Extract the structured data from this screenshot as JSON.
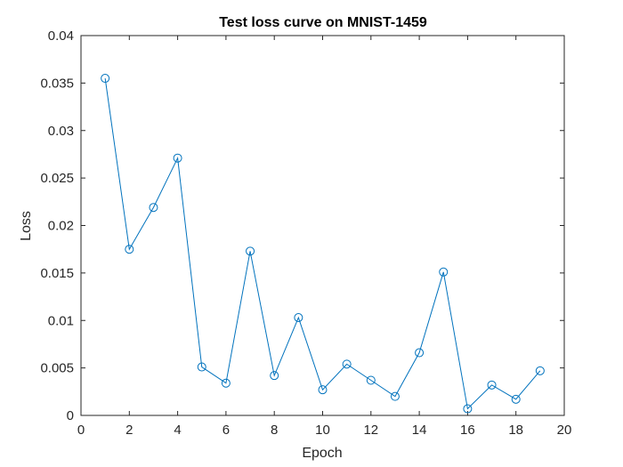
{
  "chart_data": {
    "type": "line",
    "title": "Test loss curve on MNIST-1459",
    "xlabel": "Epoch",
    "ylabel": "Loss",
    "xlim": [
      0,
      20
    ],
    "ylim": [
      0,
      0.04
    ],
    "xticks": [
      "0",
      "2",
      "4",
      "6",
      "8",
      "10",
      "12",
      "14",
      "16",
      "18",
      "20"
    ],
    "yticks": [
      "0",
      "0.005",
      "0.01",
      "0.015",
      "0.02",
      "0.025",
      "0.03",
      "0.035",
      "0.04"
    ],
    "grid": false,
    "marker": "circle",
    "series": [
      {
        "x": [
          1,
          2,
          3,
          4,
          5,
          6,
          7,
          8,
          9,
          10,
          11,
          12,
          13,
          14,
          15,
          16,
          17,
          18,
          19
        ],
        "values": [
          0.0355,
          0.0175,
          0.0219,
          0.0271,
          0.0051,
          0.0034,
          0.0173,
          0.0042,
          0.0103,
          0.0027,
          0.0054,
          0.0037,
          0.002,
          0.0066,
          0.0151,
          0.0007,
          0.0032,
          0.0017,
          0.0047
        ]
      }
    ],
    "colors": {
      "line": "#0072BD",
      "axes": "#262626",
      "background": "#ffffff"
    }
  }
}
